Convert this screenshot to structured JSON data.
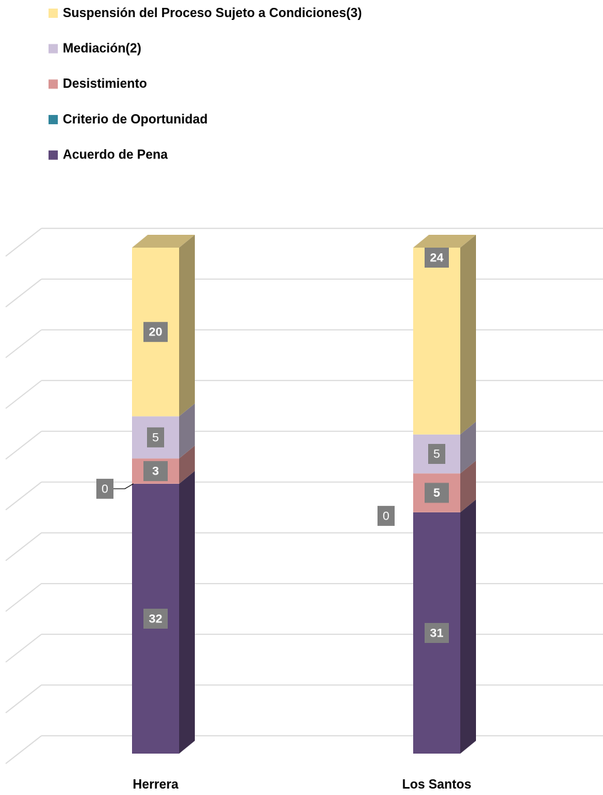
{
  "chart_data": {
    "type": "bar",
    "stacking": "percent",
    "categories": [
      "Herrera",
      "Los Santos"
    ],
    "series": [
      {
        "name": "Acuerdo de Pena",
        "color": "#604a7b",
        "values": [
          32,
          31
        ]
      },
      {
        "name": "Criterio de Oportunidad",
        "color": "#31859c",
        "values": [
          0,
          0
        ]
      },
      {
        "name": "Desistimiento",
        "color": "#d99594",
        "values": [
          3,
          5
        ]
      },
      {
        "name": "Mediación(2)",
        "color": "#ccc0da",
        "values": [
          5,
          5
        ]
      },
      {
        "name": "Suspensión del Proceso Sujeto a Condiciones(3)",
        "color": "#ffe699",
        "values": [
          20,
          24
        ]
      }
    ],
    "ylim": [
      0,
      100
    ],
    "yticks": [
      0,
      10,
      20,
      30,
      40,
      50,
      60,
      70,
      80,
      90,
      100
    ],
    "grid": true,
    "legend": "top-left"
  }
}
